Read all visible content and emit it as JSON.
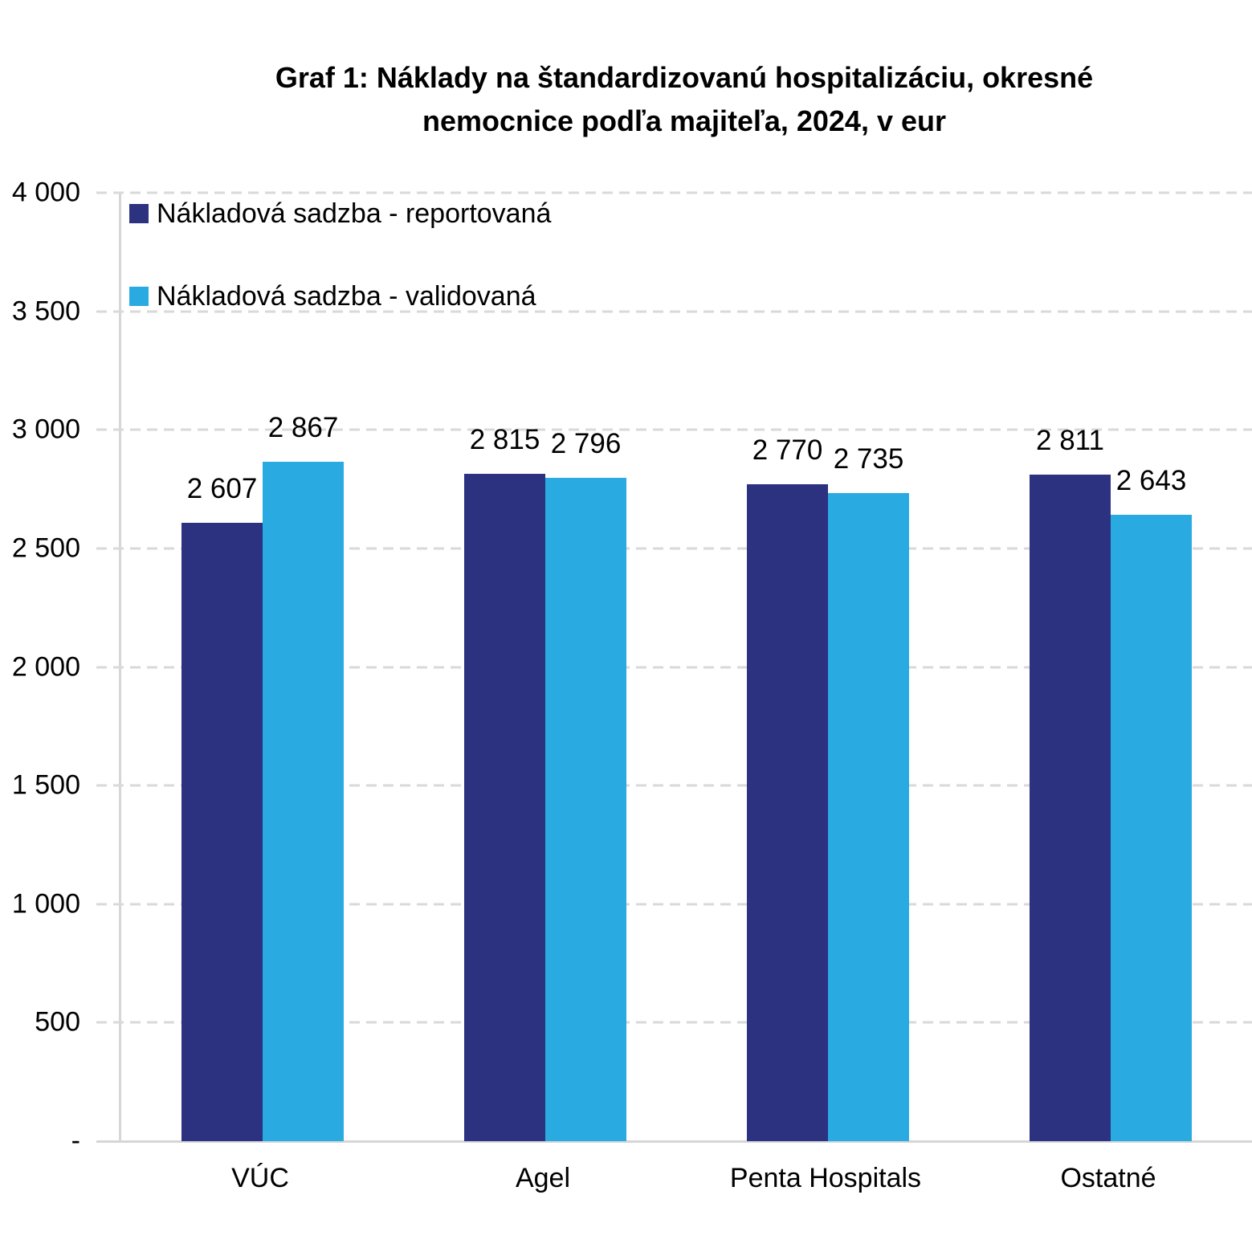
{
  "title": {
    "line1": "Graf 1: Náklady na štandardizovanú hospitalizáciu, okresné",
    "line2": "nemocnice podľa majiteľa, 2024, v eur"
  },
  "legend": {
    "items": [
      {
        "label": "Nákladová sadzba - reportovaná",
        "color": "#2C3180"
      },
      {
        "label": "Nákladová sadzba - validovaná",
        "color": "#29ABE2"
      }
    ]
  },
  "chart_data": {
    "type": "bar",
    "title": "Graf 1: Náklady na štandardizovanú hospitalizáciu, okresné nemocnice podľa majiteľa, 2024, v eur",
    "categories": [
      "VÚC",
      "Agel",
      "Penta Hospitals",
      "Ostatné"
    ],
    "series": [
      {
        "name": "Nákladová sadzba - reportovaná",
        "color": "#2C3180",
        "values": [
          2607,
          2815,
          2770,
          2811
        ],
        "labels": [
          "2 607",
          "2 815",
          "2 770",
          "2 811"
        ]
      },
      {
        "name": "Nákladová sadzba - validovaná",
        "color": "#29ABE2",
        "values": [
          2867,
          2796,
          2735,
          2643
        ],
        "labels": [
          "2 867",
          "2 796",
          "2 735",
          "2 643"
        ]
      }
    ],
    "xlabel": "",
    "ylabel": "",
    "ylim": [
      0,
      4000
    ],
    "ytick_step": 500,
    "yticks": [
      "4 000",
      "3 500",
      "3 000",
      "2 500",
      "2 000",
      "1 500",
      "1 000",
      "500",
      "-"
    ],
    "grid": "dashed-horizontal",
    "legend_position": "top-left-inside"
  },
  "colors": {
    "gridline": "#D9D9D9",
    "axis": "#D6D6D6",
    "text": "#000000",
    "background": "#FFFFFF"
  }
}
